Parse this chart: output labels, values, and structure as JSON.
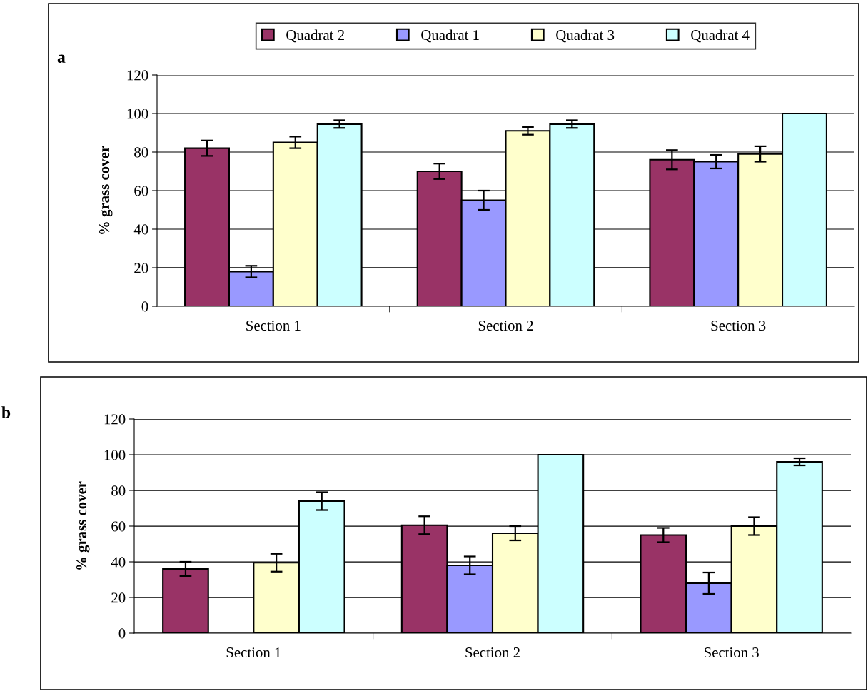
{
  "chart_data": [
    {
      "type": "bar",
      "title": "a",
      "ylabel": "% grass cover",
      "categories": [
        "Section 1",
        "Section 2",
        "Section 3"
      ],
      "ylim": [
        0,
        120
      ],
      "yticks": [
        0,
        20,
        40,
        60,
        80,
        100,
        120
      ],
      "grid": "y",
      "legend": "top",
      "series": [
        {
          "name": "Quadrat 2",
          "color": "#993366",
          "values": [
            82,
            70,
            76
          ],
          "errors": [
            4,
            4,
            5
          ]
        },
        {
          "name": "Quadrat 1",
          "color": "#9999ff",
          "values": [
            18,
            55,
            75
          ],
          "errors": [
            3,
            5,
            3.5
          ]
        },
        {
          "name": "Quadrat 3",
          "color": "#ffffcc",
          "values": [
            85,
            91,
            79
          ],
          "errors": [
            3,
            2,
            4
          ]
        },
        {
          "name": "Quadrat 4",
          "color": "#ccffff",
          "values": [
            94.5,
            94.5,
            100
          ],
          "errors": [
            2,
            2,
            null
          ]
        }
      ]
    },
    {
      "type": "bar",
      "title": "b",
      "ylabel": "% grass cover",
      "categories": [
        "Section 1",
        "Section 2",
        "Section 3"
      ],
      "ylim": [
        0,
        120
      ],
      "yticks": [
        0,
        20,
        40,
        60,
        80,
        100,
        120
      ],
      "grid": "y",
      "series": [
        {
          "color": "#993366",
          "values": [
            36,
            60.5,
            55
          ],
          "errors": [
            4,
            5,
            4
          ]
        },
        {
          "color": "#9999ff",
          "values": [
            null,
            38,
            28
          ],
          "errors": [
            null,
            5,
            6
          ]
        },
        {
          "color": "#ffffcc",
          "values": [
            39.5,
            56,
            60
          ],
          "errors": [
            5,
            4,
            5
          ]
        },
        {
          "color": "#ccffff",
          "values": [
            74,
            100,
            96
          ],
          "errors": [
            5,
            null,
            2
          ]
        }
      ]
    }
  ]
}
